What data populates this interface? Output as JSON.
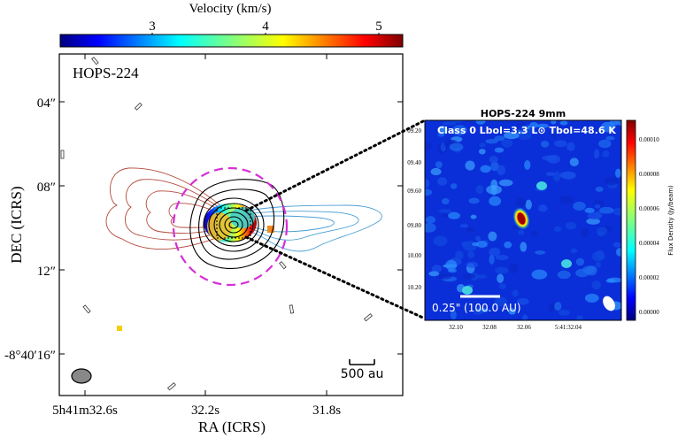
{
  "colorbar": {
    "label": "Velocity (km/s)",
    "ticks": [
      "3",
      "4",
      "5"
    ]
  },
  "left_panel": {
    "title": "HOPS-224",
    "y_ticks": [
      "04″",
      "08″",
      "12″",
      "-8°40′16″"
    ],
    "x_ticks": [
      "5h41m32.6s",
      "32.2s",
      "31.8s"
    ],
    "x_label": "RA (ICRS)",
    "y_label": "DEC (ICRS)",
    "scale_bar": "500 au"
  },
  "right_panel": {
    "title": "HOPS-224 9mm",
    "header": "Class 0  Lbol=3.3 L⊙  Tbol=48.6 K",
    "scale_bar": "0.25\" (100.0 AU)",
    "y_ticks": [
      "09.20",
      "09.40",
      "09.60",
      "09.80",
      "10.00",
      "10.20"
    ],
    "x_ticks": [
      "32.10",
      "32.08",
      "32.06",
      "5:41:32.04"
    ],
    "colorbar_label": "Flux Density (Jy/beam)",
    "colorbar_ticks": [
      "0.00010",
      "0.00008",
      "0.00006",
      "0.00004",
      "0.00002",
      "0.00000"
    ]
  },
  "colors": {
    "blue_lobe": "#4a9fd4",
    "red_lobe": "#b34a3c",
    "dashed_circle": "#d62fd6",
    "dotted_line": "#000000"
  }
}
